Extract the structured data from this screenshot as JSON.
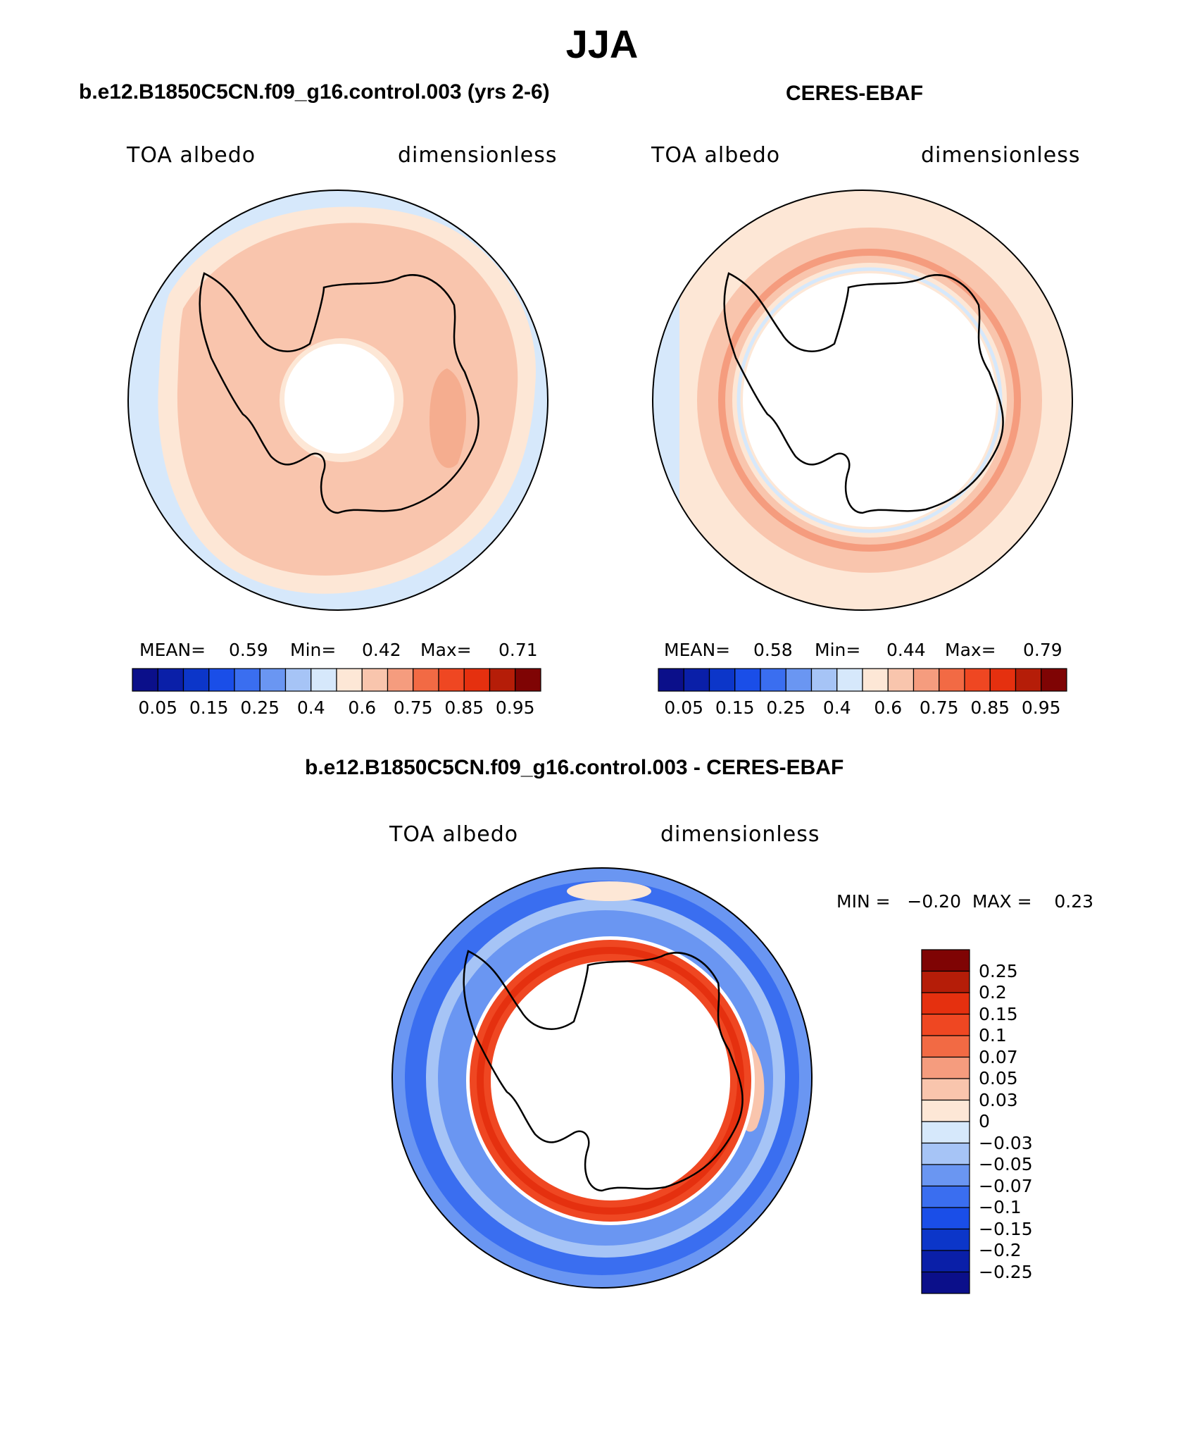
{
  "title": "JJA",
  "panels": [
    {
      "id": "model",
      "heading": "b.e12.B1850C5CN.f09_g16.control.003 (yrs 2-6)",
      "left_label": "TOA albedo",
      "right_label": "dimensionless",
      "stats": {
        "mean_label": "MEAN=",
        "mean": "0.59",
        "min_label": "Min=",
        "min": "0.42",
        "max_label": "Max=",
        "max": "0.71"
      }
    },
    {
      "id": "obs",
      "heading": "CERES-EBAF",
      "left_label": "TOA albedo",
      "right_label": "dimensionless",
      "stats": {
        "mean_label": "MEAN=",
        "mean": "0.58",
        "min_label": "Min=",
        "min": "0.44",
        "max_label": "Max=",
        "max": "0.79"
      }
    },
    {
      "id": "diff",
      "heading": "b.e12.B1850C5CN.f09_g16.control.003 - CERES-EBAF",
      "left_label": "TOA albedo",
      "right_label": "dimensionless",
      "stats_line": "MIN =   −0.20  MAX =    0.23"
    }
  ],
  "colorbar_abs": {
    "colors": [
      "#0b0f8a",
      "#0a1fa8",
      "#0c36c9",
      "#1a4ee8",
      "#3a6ef0",
      "#6a96f2",
      "#a6c4f6",
      "#d6e8fb",
      "#fde7d6",
      "#f9c5ad",
      "#f59c7e",
      "#f26a44",
      "#ef4722",
      "#e5300f",
      "#b51d08",
      "#7f0404"
    ],
    "labels": [
      "0.05",
      "0.15",
      "0.25",
      "0.4",
      "0.6",
      "0.75",
      "0.85",
      "0.95"
    ]
  },
  "colorbar_diff": {
    "colors": [
      "#0b0f8a",
      "#0a1fa8",
      "#0c36c9",
      "#1a4ee8",
      "#3a6ef0",
      "#6a96f2",
      "#a6c4f6",
      "#d6e8fb",
      "#fde7d6",
      "#f9c5ad",
      "#f59c7e",
      "#f26a44",
      "#ef4722",
      "#e5300f",
      "#b51d08",
      "#7f0404"
    ],
    "labels": [
      "0.25",
      "0.2",
      "0.15",
      "0.1",
      "0.07",
      "0.05",
      "0.03",
      "0",
      "−0.03",
      "−0.05",
      "−0.07",
      "−0.1",
      "−0.15",
      "−0.2",
      "−0.25"
    ]
  }
}
